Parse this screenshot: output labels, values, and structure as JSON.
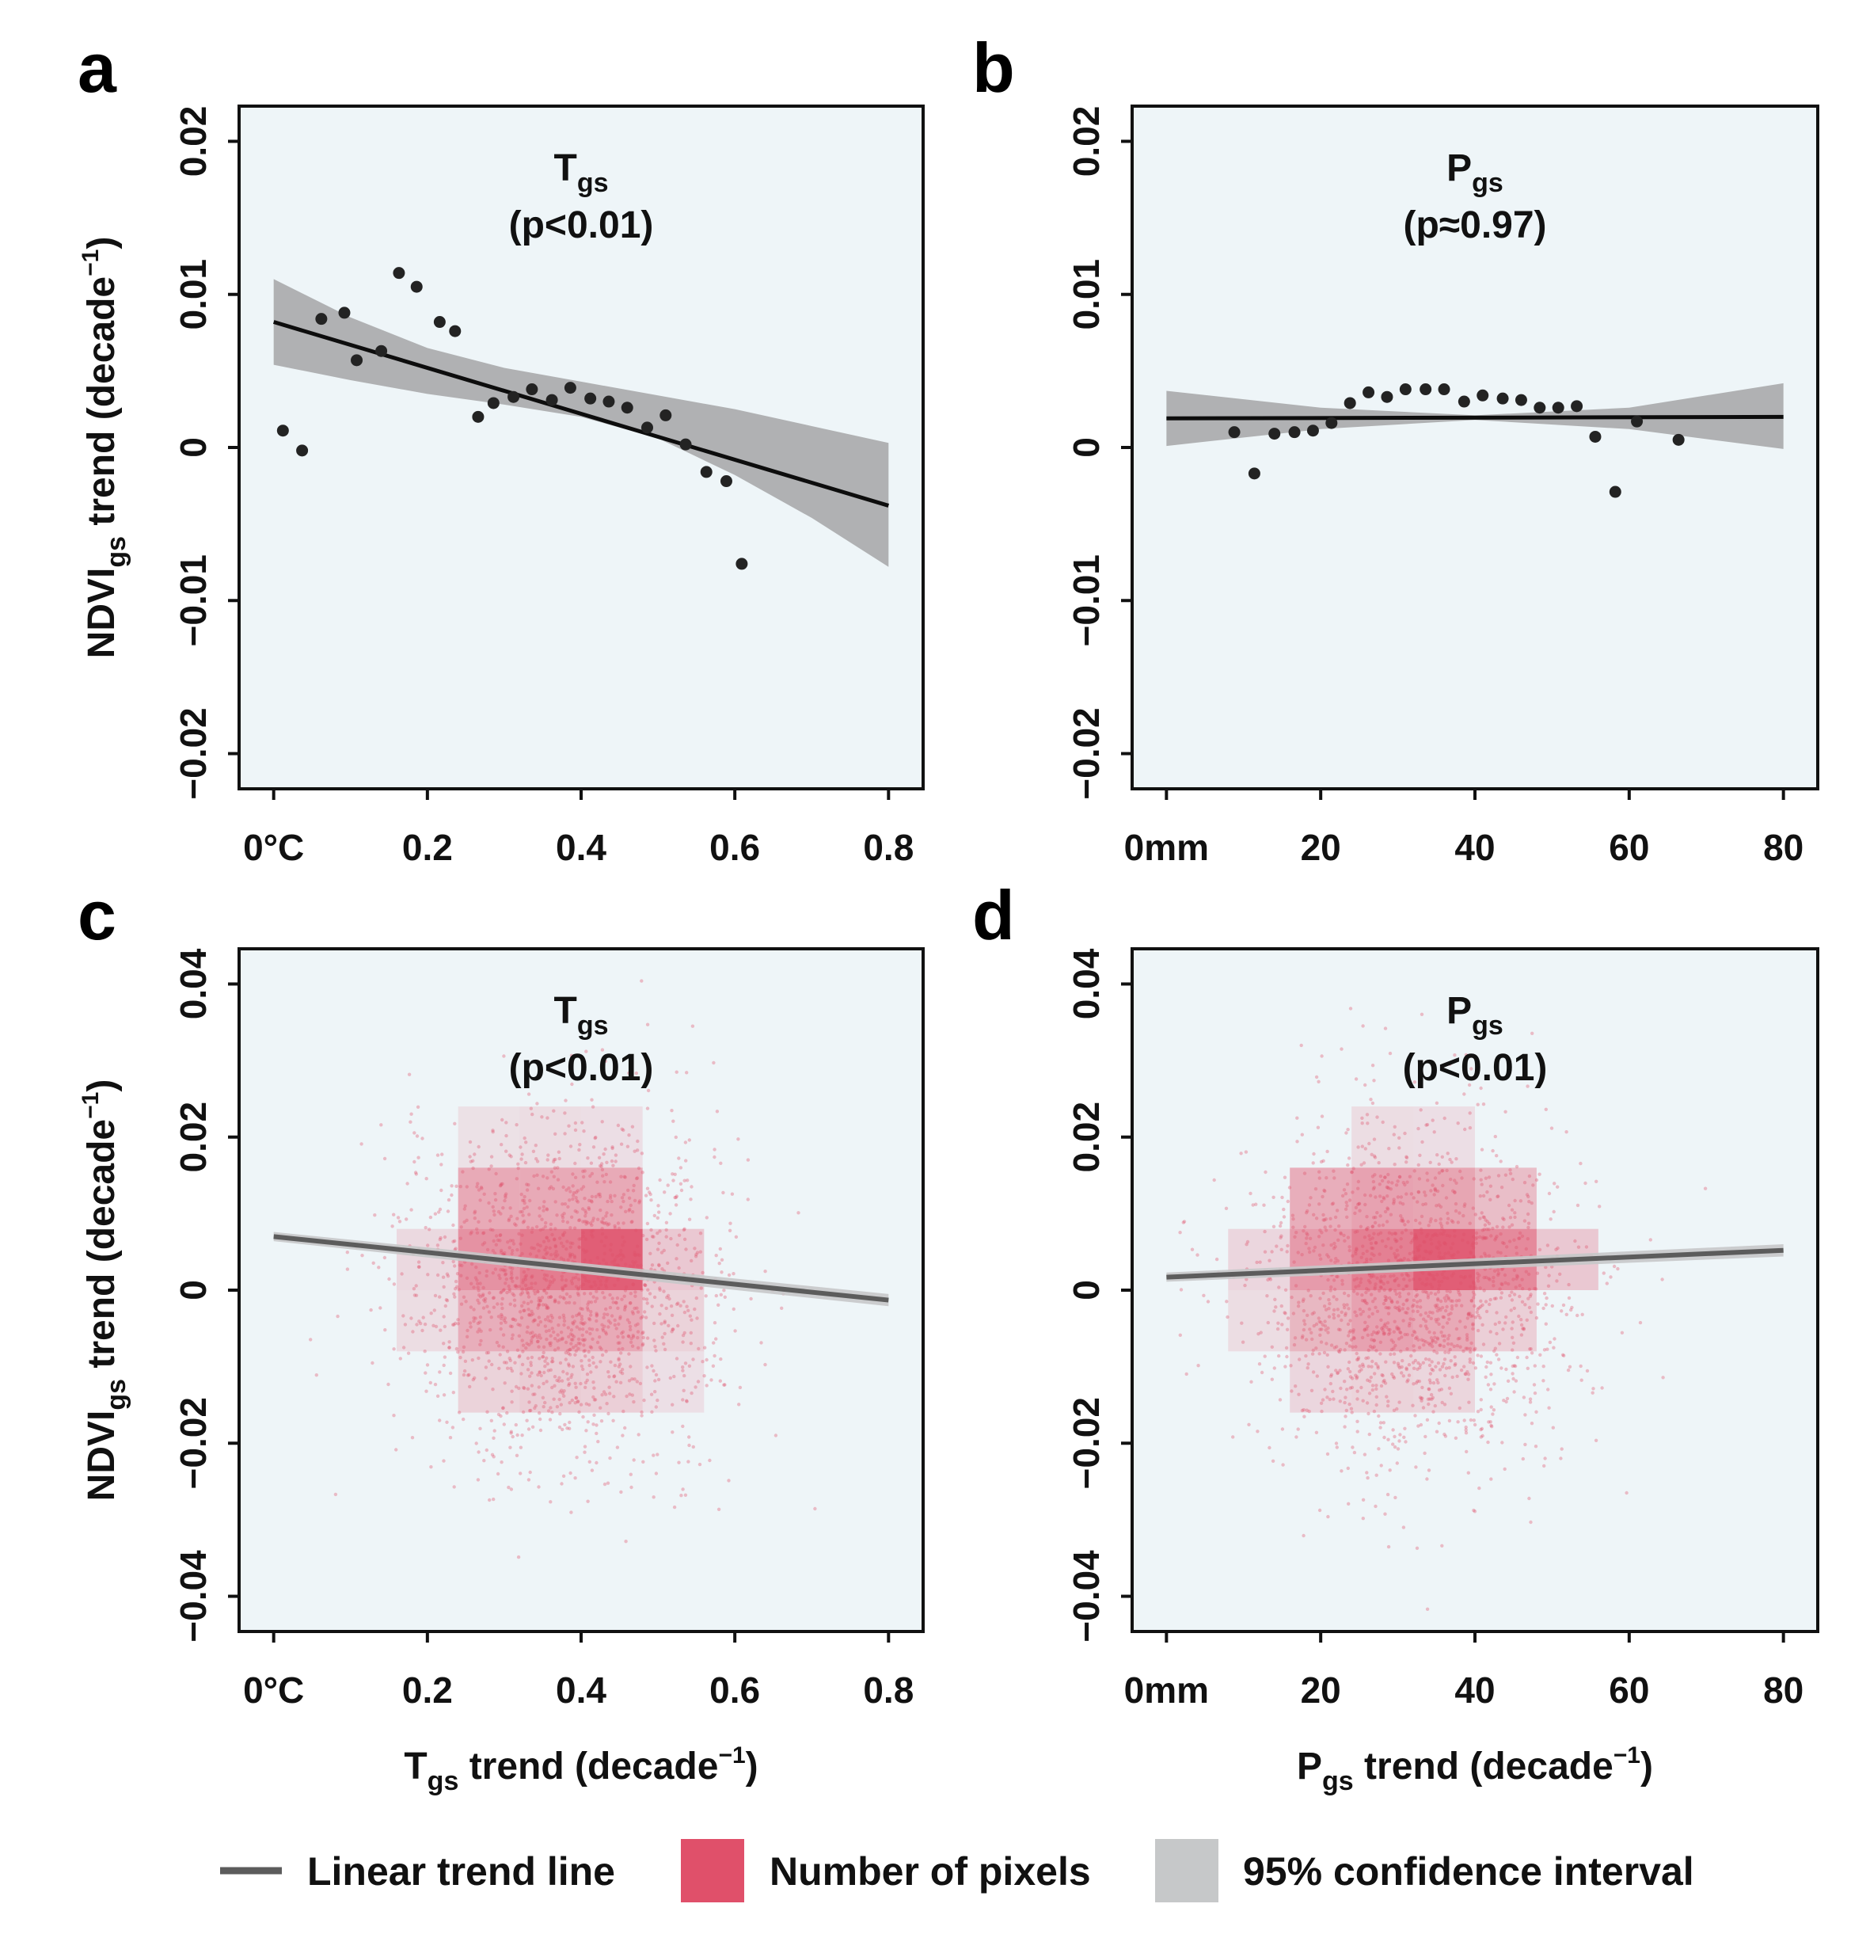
{
  "colors": {
    "plot_bg": "#eef5f8",
    "line_black": "#0d0d0d",
    "line_gray": "#5c5c5c",
    "ci_gray": "#a9aaab",
    "ci_light": "#c6c8c9",
    "pixels_red": "#e0506a",
    "point_dark": "#232323"
  },
  "legend": {
    "trend_line": "Linear trend line",
    "pixels": "Number of pixels",
    "ci": "95% confidence interval"
  },
  "chart_data": [
    {
      "panel": "a",
      "type": "scatter",
      "variable": "Tgs",
      "title_main": "T",
      "title_sub": "gs",
      "pvalue": "(p<0.01)",
      "xlim": [
        -0.045,
        0.845
      ],
      "ylim": [
        -0.0223,
        0.0223
      ],
      "xticks": [
        0,
        0.2,
        0.4,
        0.6,
        0.8
      ],
      "xtick_labels": [
        "0°C",
        "0.2",
        "0.4",
        "0.6",
        "0.8"
      ],
      "yticks": [
        -0.02,
        -0.01,
        0,
        0.01,
        0.02
      ],
      "ytick_labels": [
        "−0.02",
        "−0.01",
        "0",
        "0.01",
        "0.02"
      ],
      "ylabel_main": "NDVI",
      "ylabel_sub": "gs",
      "ylabel_rest": " trend (decade",
      "ylabel_sup": "−1",
      "ylabel_end": ")",
      "points": [
        [
          0.012,
          0.0011
        ],
        [
          0.037,
          -0.0002
        ],
        [
          0.062,
          0.0084
        ],
        [
          0.092,
          0.0088
        ],
        [
          0.108,
          0.0057
        ],
        [
          0.14,
          0.0063
        ],
        [
          0.163,
          0.0114
        ],
        [
          0.186,
          0.0105
        ],
        [
          0.216,
          0.0082
        ],
        [
          0.236,
          0.0076
        ],
        [
          0.266,
          0.002
        ],
        [
          0.286,
          0.0029
        ],
        [
          0.312,
          0.0033
        ],
        [
          0.336,
          0.0038
        ],
        [
          0.362,
          0.0031
        ],
        [
          0.386,
          0.0039
        ],
        [
          0.412,
          0.0032
        ],
        [
          0.436,
          0.003
        ],
        [
          0.46,
          0.0026
        ],
        [
          0.486,
          0.0013
        ],
        [
          0.51,
          0.0021
        ],
        [
          0.536,
          0.0002
        ],
        [
          0.563,
          -0.0016
        ],
        [
          0.589,
          -0.0022
        ],
        [
          0.609,
          -0.0076
        ]
      ],
      "trend": {
        "x": [
          0,
          0.8
        ],
        "y": [
          0.0082,
          -0.0038
        ]
      },
      "ci": {
        "x": [
          0,
          0.1,
          0.2,
          0.3,
          0.4,
          0.5,
          0.6,
          0.7,
          0.8
        ],
        "upper": [
          0.011,
          0.0085,
          0.0065,
          0.0052,
          0.0043,
          0.0034,
          0.0025,
          0.0014,
          0.0003
        ],
        "lower": [
          0.0054,
          0.0044,
          0.0035,
          0.0028,
          0.002,
          0.0006,
          -0.0018,
          -0.0046,
          -0.0078
        ]
      }
    },
    {
      "panel": "b",
      "type": "scatter",
      "variable": "Pgs",
      "title_main": "P",
      "title_sub": "gs",
      "pvalue": "(p≈0.97)",
      "xlim": [
        -4.45,
        84.45
      ],
      "ylim": [
        -0.0223,
        0.0223
      ],
      "xticks": [
        0,
        20,
        40,
        60,
        80
      ],
      "xtick_labels": [
        "0mm",
        "20",
        "40",
        "60",
        "80"
      ],
      "yticks": [
        -0.02,
        -0.01,
        0,
        0.01,
        0.02
      ],
      "ytick_labels": [
        "−0.02",
        "−0.01",
        "0",
        "0.01",
        "0.02"
      ],
      "points": [
        [
          8.8,
          0.001
        ],
        [
          11.4,
          -0.0017
        ],
        [
          14.0,
          0.0009
        ],
        [
          16.6,
          0.001
        ],
        [
          19.0,
          0.0011
        ],
        [
          21.4,
          0.0016
        ],
        [
          23.8,
          0.0029
        ],
        [
          26.2,
          0.0036
        ],
        [
          28.6,
          0.0033
        ],
        [
          31.0,
          0.0038
        ],
        [
          33.6,
          0.0038
        ],
        [
          36.0,
          0.0038
        ],
        [
          38.6,
          0.003
        ],
        [
          41.0,
          0.0034
        ],
        [
          43.6,
          0.0032
        ],
        [
          46.0,
          0.0031
        ],
        [
          48.4,
          0.0026
        ],
        [
          50.8,
          0.0026
        ],
        [
          53.2,
          0.0027
        ],
        [
          55.6,
          0.0007
        ],
        [
          58.2,
          -0.0029
        ],
        [
          61.0,
          0.0017
        ],
        [
          66.4,
          0.0005
        ]
      ],
      "trend": {
        "x": [
          0,
          80
        ],
        "y": [
          0.0019,
          0.002
        ]
      },
      "ci": {
        "x": [
          0,
          20,
          40,
          60,
          80
        ],
        "upper": [
          0.0037,
          0.0026,
          0.0021,
          0.0026,
          0.0042
        ],
        "lower": [
          0.0001,
          0.0012,
          0.0018,
          0.0012,
          -0.0001
        ]
      }
    },
    {
      "panel": "c",
      "type": "heatmap",
      "variable": "Tgs",
      "title_main": "T",
      "title_sub": "gs",
      "pvalue": "(p<0.01)",
      "xlim": [
        -0.045,
        0.845
      ],
      "ylim": [
        -0.0446,
        0.0446
      ],
      "xticks": [
        0,
        0.2,
        0.4,
        0.6,
        0.8
      ],
      "xtick_labels": [
        "0°C",
        "0.2",
        "0.4",
        "0.6",
        "0.8"
      ],
      "yticks": [
        -0.04,
        -0.02,
        0,
        0.02,
        0.04
      ],
      "ytick_labels": [
        "−0.04",
        "−0.02",
        "0",
        "0.02",
        "0.04"
      ],
      "ylabel_main": "NDVI",
      "ylabel_sub": "gs",
      "ylabel_rest": " trend (decade",
      "ylabel_sup": "−1",
      "ylabel_end": ")",
      "xlabel_main": "T",
      "xlabel_sub": "gs",
      "xlabel_rest": " trend (decade",
      "xlabel_sup": "−1",
      "xlabel_end": ")",
      "bin_width": [
        0.08,
        0.008
      ],
      "bins": [
        [
          0.24,
          0.008,
          0.45
        ],
        [
          0.32,
          0.008,
          0.45
        ],
        [
          0.4,
          0.008,
          0.45
        ],
        [
          0.24,
          0.0,
          0.62
        ],
        [
          0.32,
          0.0,
          0.78
        ],
        [
          0.4,
          0.0,
          1.0
        ],
        [
          0.48,
          0.0,
          0.22
        ],
        [
          0.24,
          -0.008,
          0.42
        ],
        [
          0.32,
          -0.008,
          0.48
        ],
        [
          0.4,
          -0.008,
          0.45
        ],
        [
          0.48,
          -0.008,
          0.15
        ],
        [
          0.24,
          -0.016,
          0.15
        ],
        [
          0.32,
          -0.016,
          0.2
        ],
        [
          0.4,
          -0.016,
          0.18
        ],
        [
          0.48,
          -0.016,
          0.06
        ],
        [
          0.16,
          0.0,
          0.1
        ],
        [
          0.16,
          -0.008,
          0.08
        ],
        [
          0.32,
          0.016,
          0.08
        ],
        [
          0.4,
          0.016,
          0.07
        ],
        [
          0.24,
          0.016,
          0.05
        ]
      ],
      "scatter_center": [
        0.38,
        0.0
      ],
      "scatter_spread": [
        0.1,
        0.011
      ],
      "trend": {
        "x": [
          0,
          0.8
        ],
        "y": [
          0.007,
          -0.0013
        ]
      },
      "ci": {
        "x": [
          0,
          0.8
        ],
        "upper": [
          0.0076,
          -0.0005
        ],
        "lower": [
          0.0064,
          -0.0021
        ]
      }
    },
    {
      "panel": "d",
      "type": "heatmap",
      "variable": "Pgs",
      "title_main": "P",
      "title_sub": "gs",
      "pvalue": "(p<0.01)",
      "xlim": [
        -4.45,
        84.45
      ],
      "ylim": [
        -0.0446,
        0.0446
      ],
      "xticks": [
        0,
        20,
        40,
        60,
        80
      ],
      "xtick_labels": [
        "0mm",
        "20",
        "40",
        "60",
        "80"
      ],
      "yticks": [
        -0.04,
        -0.02,
        0,
        0.02,
        0.04
      ],
      "ytick_labels": [
        "−0.04",
        "−0.02",
        "0",
        "0.02",
        "0.04"
      ],
      "xlabel_main": "P",
      "xlabel_sub": "gs",
      "xlabel_rest": " trend (decade",
      "xlabel_sup": "−1",
      "xlabel_end": ")",
      "bin_width": [
        8,
        0.008
      ],
      "bins": [
        [
          16,
          0.008,
          0.42
        ],
        [
          24,
          0.008,
          0.5
        ],
        [
          32,
          0.008,
          0.48
        ],
        [
          40,
          0.008,
          0.3
        ],
        [
          16,
          0.0,
          0.55
        ],
        [
          24,
          0.0,
          0.75
        ],
        [
          32,
          0.0,
          1.0
        ],
        [
          40,
          0.0,
          0.68
        ],
        [
          48,
          0.0,
          0.22
        ],
        [
          16,
          -0.008,
          0.35
        ],
        [
          24,
          -0.008,
          0.5
        ],
        [
          32,
          -0.008,
          0.45
        ],
        [
          40,
          -0.008,
          0.18
        ],
        [
          16,
          -0.016,
          0.12
        ],
        [
          24,
          -0.016,
          0.15
        ],
        [
          32,
          -0.016,
          0.13
        ],
        [
          8,
          0.0,
          0.12
        ],
        [
          8,
          -0.008,
          0.08
        ],
        [
          24,
          0.016,
          0.08
        ],
        [
          32,
          0.016,
          0.07
        ]
      ],
      "scatter_center": [
        32,
        0.0
      ],
      "scatter_spread": [
        10,
        0.011
      ],
      "trend": {
        "x": [
          0,
          80
        ],
        "y": [
          0.0017,
          0.0052
        ]
      },
      "ci": {
        "x": [
          0,
          80
        ],
        "upper": [
          0.0023,
          0.006
        ],
        "lower": [
          0.0011,
          0.0044
        ]
      }
    }
  ]
}
